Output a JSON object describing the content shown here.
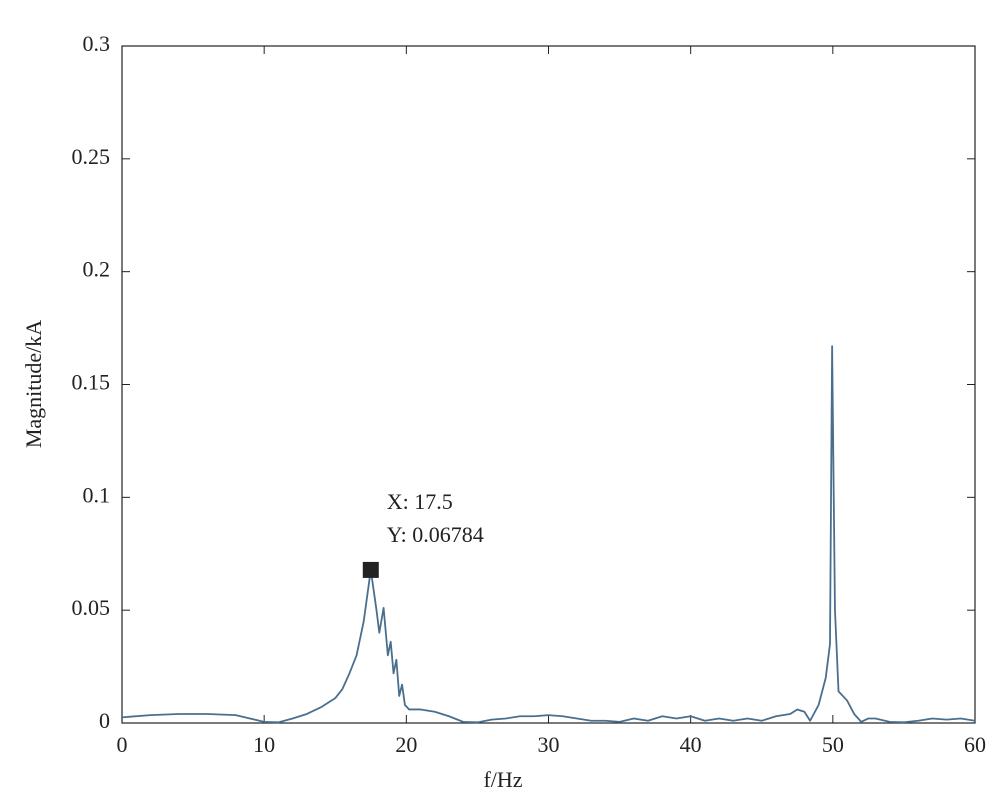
{
  "chart_data": {
    "type": "line",
    "x_label": "f/Hz",
    "y_label": "Magnitude/kA",
    "x": [
      0,
      2,
      4,
      6,
      8,
      9,
      10,
      11,
      12,
      13,
      14,
      15,
      15.5,
      16,
      16.5,
      17,
      17.5,
      17.9,
      18.1,
      18.4,
      18.7,
      18.9,
      19.1,
      19.3,
      19.5,
      19.7,
      19.9,
      20.2,
      21,
      22,
      23,
      24,
      25,
      26,
      27,
      28,
      29,
      30,
      31,
      32,
      33,
      34,
      35,
      36,
      37,
      38,
      39,
      40,
      41,
      42,
      43,
      44,
      45,
      46,
      47,
      47.5,
      48,
      48.4,
      49,
      49.5,
      49.8,
      49.95,
      50.15,
      50.4,
      51,
      51.5,
      52,
      52.5,
      53,
      54,
      55,
      56,
      57,
      58,
      59,
      60
    ],
    "series": [
      {
        "color": "#4a6f8e",
        "values": [
          0.0025,
          0.0035,
          0.004,
          0.004,
          0.0035,
          0.002,
          0.0005,
          0.0003,
          0.002,
          0.004,
          0.007,
          0.011,
          0.015,
          0.022,
          0.03,
          0.045,
          0.06784,
          0.05,
          0.04,
          0.051,
          0.03,
          0.036,
          0.022,
          0.028,
          0.012,
          0.017,
          0.008,
          0.006,
          0.006,
          0.005,
          0.003,
          0.0005,
          0.0003,
          0.0015,
          0.002,
          0.003,
          0.003,
          0.0035,
          0.003,
          0.002,
          0.001,
          0.001,
          0.0005,
          0.002,
          0.001,
          0.003,
          0.002,
          0.003,
          0.001,
          0.002,
          0.001,
          0.002,
          0.001,
          0.003,
          0.004,
          0.006,
          0.005,
          0.001,
          0.008,
          0.02,
          0.035,
          0.167,
          0.05,
          0.014,
          0.01,
          0.004,
          0.0005,
          0.002,
          0.002,
          0.0005,
          0.0003,
          0.001,
          0.002,
          0.0015,
          0.002,
          0.001
        ]
      }
    ],
    "annotations": [
      {
        "x": 17.5,
        "y": 0.06784,
        "lines": [
          "X: 17.5",
          "Y: 0.06784"
        ]
      }
    ],
    "xlim": [
      0,
      60
    ],
    "xticks": [
      0,
      10,
      20,
      30,
      40,
      50,
      60
    ],
    "ylim": [
      0,
      0.3
    ],
    "yticks": [
      0,
      0.05,
      0.1,
      0.15,
      0.2,
      0.25,
      0.3
    ]
  }
}
